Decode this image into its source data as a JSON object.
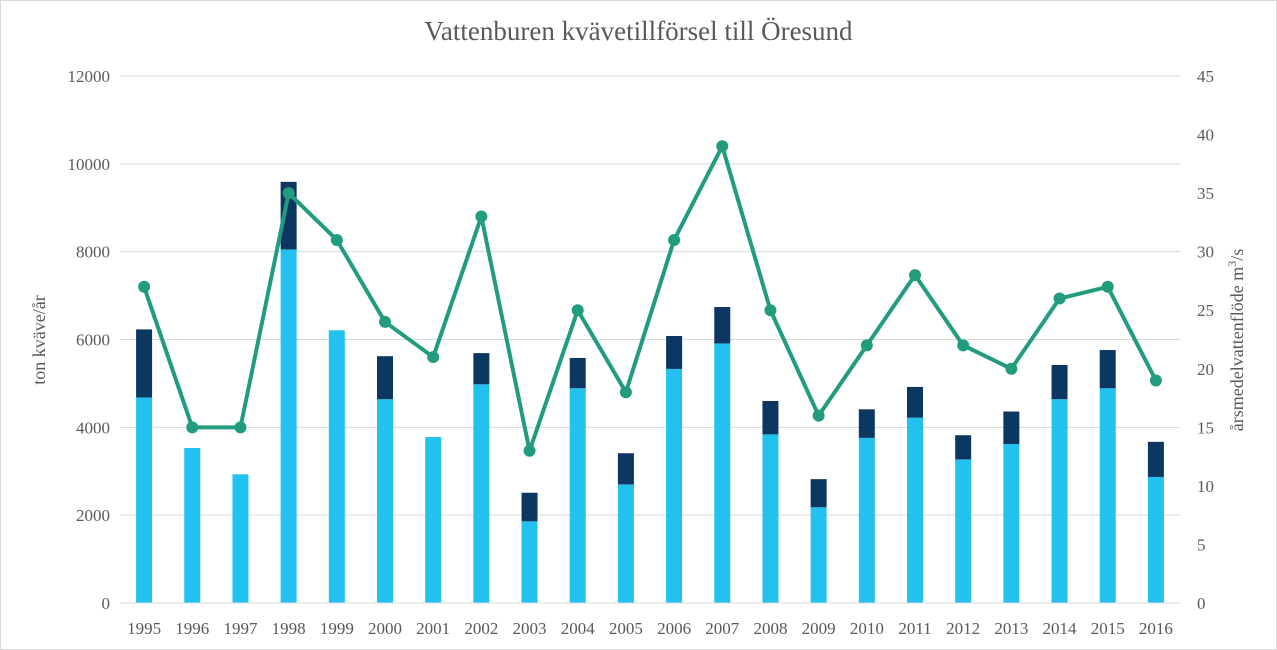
{
  "chart_data": {
    "type": "bar",
    "title": "Vattenburen kvävetillförsel till Öresund",
    "categories": [
      "1995",
      "1996",
      "1997",
      "1998",
      "1999",
      "2000",
      "2001",
      "2002",
      "2003",
      "2004",
      "2005",
      "2006",
      "2007",
      "2008",
      "2009",
      "2010",
      "2011",
      "2012",
      "2013",
      "2014",
      "2015",
      "2016"
    ],
    "stacked_bars": {
      "series": [
        {
          "name": "",
          "color": "#22c1f0",
          "values": [
            4680,
            3530,
            2930,
            8050,
            6210,
            4640,
            3780,
            4980,
            1860,
            4890,
            2700,
            5330,
            5910,
            3840,
            2180,
            3760,
            4220,
            3270,
            3620,
            4640,
            4890,
            2870
          ]
        },
        {
          "name": "",
          "color": "#0b3761",
          "values": [
            1550,
            0,
            0,
            1540,
            0,
            980,
            0,
            710,
            650,
            690,
            710,
            750,
            830,
            760,
            640,
            650,
            700,
            550,
            740,
            780,
            870,
            800
          ]
        }
      ]
    },
    "line": {
      "name": "",
      "color": "#229c7e",
      "axis": "right",
      "values": [
        27,
        15,
        15,
        35,
        31,
        24,
        21,
        33,
        13,
        25,
        18,
        31,
        39,
        25,
        16,
        22,
        28,
        22,
        20,
        26,
        27,
        19
      ]
    },
    "y_left": {
      "label": "ton kväve/år",
      "min": 0,
      "max": 12000,
      "ticks": [
        "0",
        "2000",
        "4000",
        "6000",
        "8000",
        "10000",
        "12000"
      ]
    },
    "y_right": {
      "label_prefix": "årsmedelvattenflöde m",
      "label_sup": "3",
      "label_suffix": "/s",
      "min": 0,
      "max": 45,
      "ticks": [
        "0",
        "5",
        "10",
        "15",
        "20",
        "25",
        "30",
        "35",
        "40",
        "45"
      ]
    },
    "grid": true,
    "legend": "none"
  }
}
